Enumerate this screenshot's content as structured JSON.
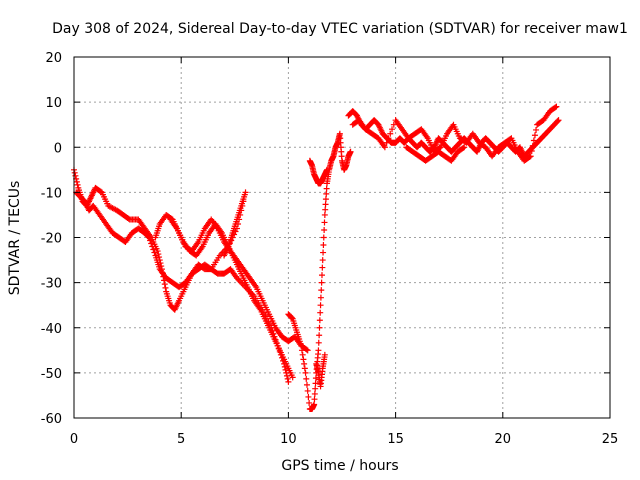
{
  "chart_data": {
    "type": "scatter",
    "title": "Day 308 of 2024, Sidereal Day-to-day VTEC variation (SDTVAR) for receiver maw1",
    "xlabel": "GPS time / hours",
    "ylabel": "SDTVAR / TECUs",
    "xlim": [
      0,
      25
    ],
    "ylim": [
      -60,
      20
    ],
    "xticks": [
      "0",
      "5",
      "10",
      "15",
      "20",
      "25"
    ],
    "yticks": [
      "20",
      "10",
      "0",
      "-10",
      "-20",
      "-30",
      "-40",
      "-50",
      "-60"
    ],
    "grid": true,
    "marker": "+",
    "color": "#ff0000",
    "series": [
      {
        "name": "trace-1",
        "x": [
          0.0,
          0.2,
          0.4,
          0.6,
          0.8,
          1.0,
          1.3,
          1.6,
          2.0,
          2.3,
          2.6,
          3.0,
          3.3,
          3.6,
          3.9,
          4.1,
          4.3,
          4.5,
          4.7,
          4.9,
          5.2,
          5.5,
          5.8,
          6.1,
          6.4,
          6.8,
          7.2,
          7.6,
          7.9
        ],
        "y": [
          -5,
          -9,
          -12,
          -13,
          -11,
          -9,
          -10,
          -13,
          -14,
          -15,
          -16,
          -16,
          -18,
          -20,
          -23,
          -27,
          -32,
          -35,
          -36,
          -34,
          -31,
          -28,
          -26,
          -27,
          -27,
          -24,
          -22,
          -18,
          -12
        ]
      },
      {
        "name": "trace-2",
        "x": [
          0.1,
          0.3,
          0.5,
          0.7,
          0.9,
          1.2,
          1.5,
          1.8,
          2.1,
          2.4,
          2.7,
          3.0,
          3.3,
          3.5,
          3.8,
          4.0,
          4.3,
          4.6,
          4.9,
          5.2,
          5.5,
          5.8,
          6.1,
          6.4,
          6.7,
          7.0,
          7.3,
          7.6,
          8.0,
          8.4,
          8.8,
          9.2,
          9.5,
          9.8,
          10.0
        ],
        "y": [
          -10,
          -11,
          -12,
          -14,
          -13,
          -15,
          -17,
          -19,
          -20,
          -21,
          -19,
          -18,
          -19,
          -20,
          -24,
          -27,
          -29,
          -30,
          -31,
          -30,
          -28,
          -27,
          -26,
          -27,
          -28,
          -28,
          -27,
          -29,
          -31,
          -33,
          -36,
          -40,
          -44,
          -48,
          -52
        ]
      },
      {
        "name": "trace-3",
        "x": [
          3.8,
          4.0,
          4.3,
          4.6,
          4.9,
          5.2,
          5.5,
          5.8,
          6.1,
          6.4,
          6.7,
          7.0,
          7.3,
          7.6,
          7.9,
          8.2,
          8.5,
          8.8,
          9.1,
          9.4,
          9.7,
          10.0,
          10.3,
          10.6,
          10.9
        ],
        "y": [
          -20,
          -17,
          -15,
          -16,
          -19,
          -22,
          -23,
          -21,
          -18,
          -16,
          -18,
          -21,
          -23,
          -25,
          -27,
          -29,
          -31,
          -34,
          -37,
          -40,
          -42,
          -43,
          -42,
          -44,
          -45
        ]
      },
      {
        "name": "trace-4",
        "x": [
          4.5,
          4.8,
          5.1,
          5.4,
          5.7,
          6.0,
          6.3,
          6.6,
          6.9,
          7.2,
          7.5,
          7.8,
          8.1,
          8.4,
          8.7,
          9.0,
          9.3,
          9.6,
          9.9,
          10.2
        ],
        "y": [
          -16,
          -18,
          -21,
          -23,
          -24,
          -22,
          -19,
          -17,
          -19,
          -22,
          -25,
          -28,
          -31,
          -34,
          -36,
          -39,
          -42,
          -45,
          -48,
          -51
        ]
      },
      {
        "name": "trace-5",
        "x": [
          7.0,
          7.2,
          7.4,
          7.6,
          7.8,
          8.0
        ],
        "y": [
          -24,
          -22,
          -19,
          -16,
          -13,
          -10
        ]
      },
      {
        "name": "trace-6",
        "x": [
          10.0,
          10.2,
          10.4,
          10.6,
          10.8,
          11.0,
          11.1,
          11.2,
          11.3,
          11.4,
          11.5,
          11.6,
          11.7,
          11.8,
          11.9,
          12.0,
          12.1,
          12.2,
          12.3,
          12.4,
          12.5,
          12.6,
          12.7,
          12.8,
          12.9
        ],
        "y": [
          -37,
          -38,
          -41,
          -44,
          -50,
          -58,
          -58,
          -57,
          -50,
          -45,
          -35,
          -25,
          -15,
          -8,
          -5,
          -3,
          -2,
          0,
          1,
          3,
          -3,
          -5,
          -4,
          -2,
          -1
        ]
      },
      {
        "name": "trace-7",
        "x": [
          11.0,
          11.1,
          11.2,
          11.3,
          11.4,
          11.5,
          11.6,
          11.7,
          11.8
        ],
        "y": [
          -3,
          -4,
          -6,
          -7,
          -8,
          -8,
          -7,
          -6,
          -5
        ]
      },
      {
        "name": "trace-8",
        "x": [
          11.3,
          11.4,
          11.5,
          11.6,
          11.7
        ],
        "y": [
          -48,
          -50,
          -53,
          -49,
          -46
        ]
      },
      {
        "name": "trace-9",
        "x": [
          12.8,
          13.0,
          13.2,
          13.4,
          13.6,
          13.8,
          14.0,
          14.2,
          14.4,
          14.6,
          14.8,
          15.0,
          15.2,
          15.4,
          15.6,
          15.8,
          16.0,
          16.2,
          16.4,
          16.6,
          16.8,
          17.0,
          17.2,
          17.4,
          17.6,
          17.8,
          18.0,
          18.2,
          18.4,
          18.6,
          18.8,
          19.0,
          19.2,
          19.4,
          19.6,
          19.8,
          20.0,
          20.2,
          20.4,
          20.6,
          20.8,
          21.0,
          21.2,
          21.4,
          21.6,
          21.8,
          22.0,
          22.2,
          22.4,
          22.6
        ],
        "y": [
          7,
          8,
          7,
          5,
          4,
          5,
          6,
          5,
          3,
          2,
          1,
          1,
          2,
          1,
          2,
          1,
          0,
          1,
          0,
          -1,
          0,
          2,
          1,
          0,
          -1,
          0,
          1,
          2,
          1,
          0,
          -1,
          1,
          2,
          1,
          0,
          -1,
          0,
          1,
          0,
          -1,
          0,
          -2,
          -1,
          0,
          1,
          2,
          3,
          4,
          5,
          6
        ]
      },
      {
        "name": "trace-10",
        "x": [
          13.0,
          13.3,
          13.6,
          13.9,
          14.2,
          14.5,
          15.0,
          15.3,
          15.6,
          15.9,
          16.2,
          16.5,
          16.8,
          17.1,
          17.4,
          17.7,
          18.0,
          18.3,
          18.6,
          18.9,
          19.2,
          19.5,
          19.8,
          20.1,
          20.4,
          20.7,
          21.0,
          21.3,
          21.6,
          21.9,
          22.2,
          22.5
        ],
        "y": [
          5,
          6,
          4,
          3,
          2,
          0,
          6,
          4,
          2,
          3,
          4,
          2,
          -1,
          0,
          3,
          5,
          2,
          1,
          3,
          1,
          0,
          -2,
          0,
          1,
          2,
          -1,
          -3,
          -2,
          5,
          6,
          8,
          9
        ]
      },
      {
        "name": "trace-11",
        "x": [
          15.5,
          15.8,
          16.1,
          16.4,
          16.7,
          17.0,
          17.3,
          17.6,
          17.9,
          18.2
        ],
        "y": [
          0,
          -1,
          -2,
          -3,
          -2,
          -1,
          -2,
          -3,
          -1,
          0
        ]
      }
    ]
  }
}
